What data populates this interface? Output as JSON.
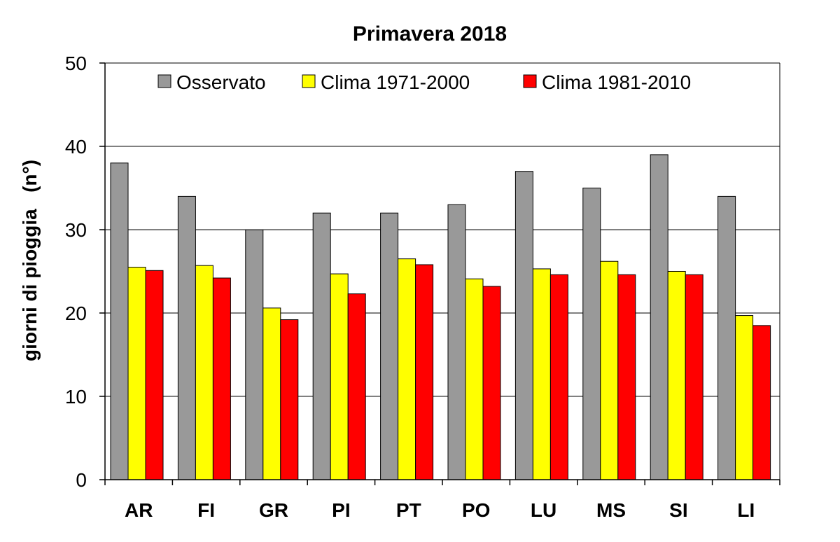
{
  "chart_data": {
    "type": "bar",
    "title": "Primavera 2018",
    "xlabel": "",
    "ylabel": "giorni di pioggia   (n°)",
    "ylim": [
      0,
      50
    ],
    "yticks": [
      0,
      10,
      20,
      30,
      40,
      50
    ],
    "grid": true,
    "legend_position": "top",
    "categories": [
      "AR",
      "FI",
      "GR",
      "PI",
      "PT",
      "PO",
      "LU",
      "MS",
      "SI",
      "LI"
    ],
    "series": [
      {
        "name": "Osservato",
        "color": "#999999",
        "values": [
          38,
          34,
          30,
          32,
          32,
          33,
          37,
          35,
          39,
          34
        ]
      },
      {
        "name": "Clima 1971-2000",
        "color": "#ffff00",
        "values": [
          25.5,
          25.7,
          20.6,
          24.7,
          26.5,
          24.1,
          25.3,
          26.2,
          25.0,
          19.7
        ]
      },
      {
        "name": "Clima 1981-2010",
        "color": "#ff0000",
        "values": [
          25.1,
          24.2,
          19.2,
          22.3,
          25.8,
          23.2,
          24.6,
          24.6,
          24.6,
          18.5
        ]
      }
    ]
  }
}
